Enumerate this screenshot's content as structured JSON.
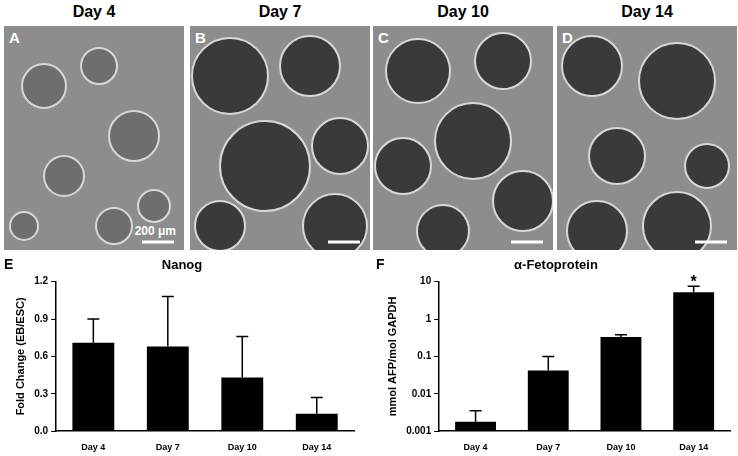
{
  "images": [
    {
      "title": "Day 4",
      "label": "A",
      "scale_bar": "200 μm"
    },
    {
      "title": "Day 7",
      "label": "B"
    },
    {
      "title": "Day 10",
      "label": "C"
    },
    {
      "title": "Day 14",
      "label": "D"
    }
  ],
  "chart_data": [
    {
      "type": "bar",
      "panel_label": "E",
      "title": "Nanog",
      "y_label": "Fold Change (EB/ESC)",
      "categories": [
        "Day 4",
        "Day 7",
        "Day 10",
        "Day 14"
      ],
      "values": [
        0.71,
        0.68,
        0.43,
        0.14
      ],
      "errors": [
        0.19,
        0.4,
        0.33,
        0.13
      ],
      "color": "#000000",
      "ylim": [
        0,
        1.2
      ],
      "yticks": [
        {
          "value": 0,
          "label": "0.0"
        },
        0.3,
        0.6,
        0.9,
        1.2
      ],
      "grid": false
    },
    {
      "type": "bar",
      "panel_label": "F",
      "title": "α-Fetoprotein",
      "y_label": "mmol AFP/mol GAPDH",
      "categories": [
        "Day 4",
        "Day 7",
        "Day 10",
        "Day 14"
      ],
      "values": [
        0.0018,
        0.042,
        0.33,
        5.2
      ],
      "errors": [
        0.0017,
        0.058,
        0.05,
        2.3
      ],
      "color": "#000000",
      "log": "y",
      "ylim": [
        0.001,
        10
      ],
      "yticks": [
        0.001,
        0.01,
        0.1,
        1,
        10
      ],
      "grid": false,
      "annotations": [
        {
          "category": "Day 14",
          "text": "*"
        }
      ]
    }
  ]
}
